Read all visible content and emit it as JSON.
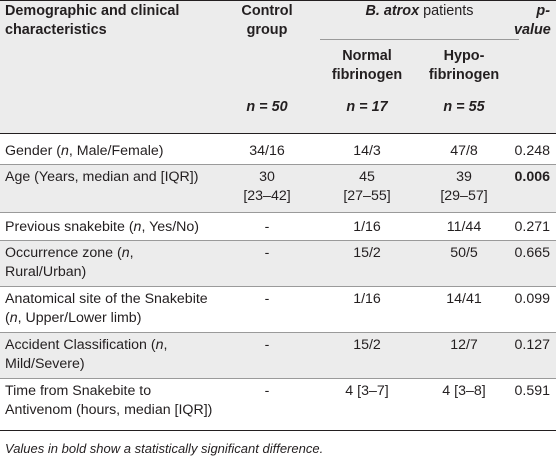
{
  "header": {
    "col0": [
      "Demographic and clinical",
      "characteristics"
    ],
    "col1": [
      "Control",
      "group"
    ],
    "col1_n": "n = 50",
    "group_label_italic": "B. atrox",
    "group_label_rest": " patients",
    "col2": [
      "Normal",
      "fibrinogen"
    ],
    "col2_n": "n = 17",
    "col3": [
      "Hypo-",
      "fibrinogen"
    ],
    "col3_n": "n = 55",
    "col4": "p-value"
  },
  "rows": [
    {
      "label": [
        "Gender (",
        "n",
        ", Male/Female)"
      ],
      "control": [
        "34/16"
      ],
      "normal": [
        "14/3"
      ],
      "hypo": [
        "47/8"
      ],
      "p": "0.248",
      "p_bold": false
    },
    {
      "label": [
        "Age (Years, median and [IQR])"
      ],
      "control": [
        "30",
        "[23–42]"
      ],
      "normal": [
        "45",
        "[27–55]"
      ],
      "hypo": [
        "39",
        "[29–57]"
      ],
      "p": "0.006",
      "p_bold": true
    },
    {
      "label": [
        "Previous snakebite (",
        "n",
        ", Yes/No)"
      ],
      "control": [
        "-"
      ],
      "normal": [
        "1/16"
      ],
      "hypo": [
        "11/44"
      ],
      "p": "0.271",
      "p_bold": false
    },
    {
      "label": [
        "Occurrence zone (",
        "n",
        ","
      ],
      "label2": "Rural/Urban)",
      "control": [
        "-"
      ],
      "normal": [
        "15/2"
      ],
      "hypo": [
        "50/5"
      ],
      "p": "0.665",
      "p_bold": false
    },
    {
      "label": [
        "Anatomical site of the Snakebite"
      ],
      "label2a": [
        "(",
        "n",
        ", Upper/Lower limb)"
      ],
      "control": [
        "-"
      ],
      "normal": [
        "1/16"
      ],
      "hypo": [
        "14/41"
      ],
      "p": "0.099",
      "p_bold": false
    },
    {
      "label": [
        "Accident Classification (",
        "n",
        ","
      ],
      "label2": "Mild/Severe)",
      "control": [
        "-"
      ],
      "normal": [
        "15/2"
      ],
      "hypo": [
        "12/7"
      ],
      "p": "0.127",
      "p_bold": false
    },
    {
      "label": [
        "Time from Snakebite to"
      ],
      "label2": "Antivenom (hours, median [IQR])",
      "control": [
        "-"
      ],
      "normal": [
        "4 [3–7]"
      ],
      "hypo": [
        "4 [3–8]"
      ],
      "p": "0.591",
      "p_bold": false
    }
  ],
  "footnote": "Values in bold show a statistically significant difference."
}
